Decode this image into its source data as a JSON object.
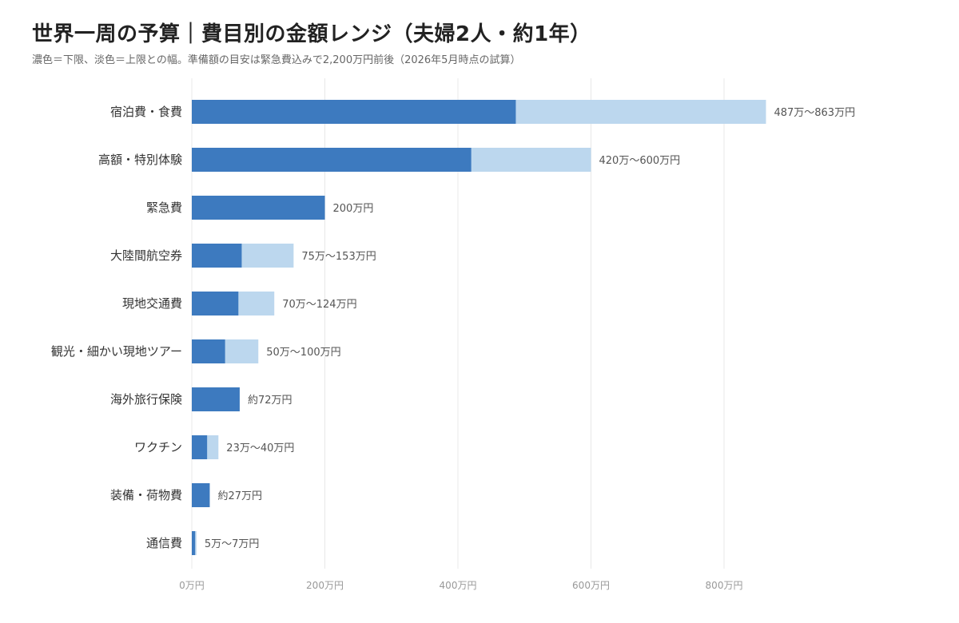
{
  "chart_data": {
    "type": "bar",
    "orientation": "horizontal",
    "stacked_range": true,
    "title": "世界一周の予算｜費目別の金額レンジ（夫婦2人・約1年）",
    "subtitle": "濃色＝下限、淡色＝上限との幅。準備額の目安は緊急費込みで2,200万円前後（2026年5月時点の試算）",
    "categories": [
      "宿泊費・食費",
      "高額・特別体験",
      "緊急費",
      "大陸間航空券",
      "現地交通費",
      "観光・細かい現地ツアー",
      "海外旅行保険",
      "ワクチン",
      "装備・荷物費",
      "通信費"
    ],
    "series": [
      {
        "name": "下限",
        "color": "#3d7abf",
        "values": [
          487,
          420,
          200,
          75,
          70,
          50,
          72,
          23,
          27,
          5
        ]
      },
      {
        "name": "上限",
        "color": "#bcd7ee",
        "values": [
          863,
          600,
          200,
          153,
          124,
          100,
          72,
          40,
          27,
          7
        ]
      }
    ],
    "value_labels": [
      "487万〜863万円",
      "420万〜600万円",
      "200万円",
      "75万〜153万円",
      "70万〜124万円",
      "50万〜100万円",
      "約72万円",
      "23万〜40万円",
      "約27万円",
      "5万〜7万円"
    ],
    "xticks": [
      0,
      200,
      400,
      600,
      800
    ],
    "xtick_labels": [
      "0万円",
      "200万円",
      "400万円",
      "600万円",
      "800万円"
    ],
    "xlim": [
      0,
      900
    ],
    "unit": "万円",
    "grid": "vertical",
    "legend": "none"
  }
}
